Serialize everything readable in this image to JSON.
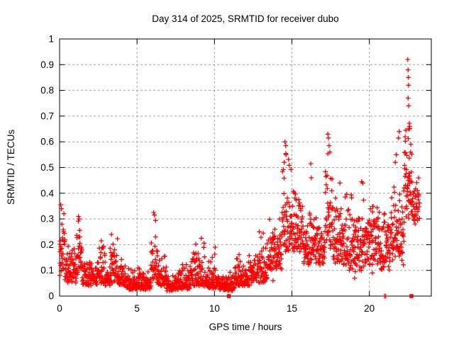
{
  "chart_data": {
    "type": "scatter",
    "title": "Day 314 of 2025, SRMTID for receiver dubo",
    "xlabel": "GPS time / hours",
    "ylabel": "SRMTID / TECUs",
    "series_name": "SRMTID",
    "xlim": [
      0,
      24
    ],
    "ylim": [
      0,
      1
    ],
    "grid": true,
    "legend_position": "none",
    "marker": "plus",
    "marker_color": "#ff0000",
    "grid_color": "#a0a0a0",
    "axis_color": "#000000",
    "background_color": "#ffffff",
    "xticks": [
      {
        "v": 0,
        "label": "0"
      },
      {
        "v": 5,
        "label": "5"
      },
      {
        "v": 10,
        "label": "10"
      },
      {
        "v": 15,
        "label": "15"
      },
      {
        "v": 20,
        "label": "20"
      }
    ],
    "yticks": [
      {
        "v": 0.0,
        "label": "0"
      },
      {
        "v": 0.1,
        "label": "0.1"
      },
      {
        "v": 0.2,
        "label": "0.2"
      },
      {
        "v": 0.3,
        "label": "0.3"
      },
      {
        "v": 0.4,
        "label": "0.4"
      },
      {
        "v": 0.5,
        "label": "0.5"
      },
      {
        "v": 0.6,
        "label": "0.6"
      },
      {
        "v": 0.7,
        "label": "0.7"
      },
      {
        "v": 0.8,
        "label": "0.8"
      },
      {
        "v": 0.9,
        "label": "0.9"
      },
      {
        "v": 1.0,
        "label": "1"
      }
    ],
    "seed": 7,
    "band_segments": [
      [
        0.0,
        0.35,
        30,
        0.08,
        0.36,
        1.8
      ],
      [
        0.35,
        1.1,
        62,
        0.05,
        0.22,
        2.0
      ],
      [
        1.1,
        1.45,
        30,
        0.08,
        0.32,
        1.8
      ],
      [
        1.45,
        2.1,
        54,
        0.04,
        0.18,
        2.0
      ],
      [
        2.1,
        2.45,
        28,
        0.04,
        0.14,
        2.0
      ],
      [
        2.45,
        2.95,
        40,
        0.05,
        0.22,
        2.0
      ],
      [
        2.95,
        3.25,
        25,
        0.04,
        0.14,
        2.0
      ],
      [
        3.25,
        3.75,
        42,
        0.05,
        0.24,
        1.9
      ],
      [
        3.75,
        4.3,
        45,
        0.04,
        0.16,
        2.2
      ],
      [
        4.3,
        5.9,
        130,
        0.025,
        0.13,
        2.2
      ],
      [
        5.9,
        6.35,
        38,
        0.05,
        0.33,
        2.0
      ],
      [
        6.35,
        6.9,
        45,
        0.04,
        0.18,
        2.2
      ],
      [
        6.9,
        7.4,
        40,
        0.02,
        0.11,
        2.0
      ],
      [
        7.4,
        8.4,
        80,
        0.025,
        0.14,
        2.2
      ],
      [
        8.4,
        9.35,
        75,
        0.04,
        0.23,
        2.2
      ],
      [
        9.35,
        10.35,
        80,
        0.03,
        0.19,
        2.4
      ],
      [
        10.35,
        11.3,
        75,
        0.02,
        0.1,
        2.0
      ],
      [
        11.3,
        12.4,
        88,
        0.04,
        0.17,
        2.0
      ],
      [
        12.4,
        13.4,
        80,
        0.05,
        0.25,
        2.0
      ],
      [
        13.4,
        14.35,
        78,
        0.1,
        0.33,
        1.9
      ],
      [
        14.35,
        15.05,
        60,
        0.17,
        0.62,
        1.9
      ],
      [
        15.05,
        15.75,
        58,
        0.17,
        0.46,
        1.7
      ],
      [
        15.75,
        16.15,
        32,
        0.12,
        0.3,
        1.7
      ],
      [
        16.15,
        16.4,
        20,
        0.13,
        0.52,
        1.6
      ],
      [
        16.4,
        17.15,
        62,
        0.12,
        0.33,
        1.7
      ],
      [
        17.15,
        17.65,
        42,
        0.18,
        0.63,
        1.8
      ],
      [
        17.65,
        18.65,
        82,
        0.12,
        0.46,
        1.8
      ],
      [
        18.65,
        19.65,
        82,
        0.1,
        0.42,
        1.8
      ],
      [
        19.65,
        20.65,
        82,
        0.12,
        0.42,
        1.7
      ],
      [
        20.65,
        21.35,
        58,
        0.1,
        0.35,
        1.7
      ],
      [
        21.35,
        22.25,
        74,
        0.12,
        0.52,
        1.8
      ],
      [
        22.25,
        22.75,
        50,
        0.3,
        0.72,
        1.6
      ],
      [
        22.75,
        23.25,
        40,
        0.28,
        0.5,
        1.5
      ]
    ],
    "notable_points": [
      [
        0.08,
        0.355
      ],
      [
        0.12,
        0.34
      ],
      [
        1.22,
        0.31
      ],
      [
        1.27,
        0.3
      ],
      [
        2.7,
        0.215
      ],
      [
        3.35,
        0.24
      ],
      [
        6.08,
        0.325
      ],
      [
        6.13,
        0.315
      ],
      [
        9.15,
        0.225
      ],
      [
        10.05,
        0.19
      ],
      [
        12.9,
        0.25
      ],
      [
        13.15,
        0.245
      ],
      [
        13.78,
        0.06
      ],
      [
        14.2,
        0.3
      ],
      [
        14.5,
        0.52
      ],
      [
        14.55,
        0.6
      ],
      [
        14.6,
        0.585
      ],
      [
        14.62,
        0.55
      ],
      [
        16.22,
        0.515
      ],
      [
        16.25,
        0.46
      ],
      [
        17.32,
        0.63
      ],
      [
        17.36,
        0.615
      ],
      [
        17.4,
        0.585
      ],
      [
        17.45,
        0.56
      ],
      [
        18.1,
        0.44
      ],
      [
        19.05,
        0.07
      ],
      [
        19.1,
        0.095
      ],
      [
        19.5,
        0.445
      ],
      [
        19.58,
        0.44
      ],
      [
        20.2,
        0.09
      ],
      [
        21.68,
        0.52
      ],
      [
        21.74,
        0.55
      ],
      [
        21.88,
        0.615
      ],
      [
        21.93,
        0.64
      ],
      [
        22.48,
        0.92
      ],
      [
        22.5,
        0.88
      ],
      [
        22.52,
        0.85
      ],
      [
        22.53,
        0.82
      ],
      [
        22.5,
        0.77
      ],
      [
        22.54,
        0.74
      ],
      [
        22.58,
        0.672
      ],
      [
        22.6,
        0.66
      ],
      [
        22.55,
        0.65
      ]
    ],
    "zero_plus_points": [
      [
        20.98,
        0
      ],
      [
        21.06,
        0
      ]
    ],
    "zero_square_points": [
      [
        10.93,
        0
      ],
      [
        22.72,
        0
      ]
    ]
  }
}
